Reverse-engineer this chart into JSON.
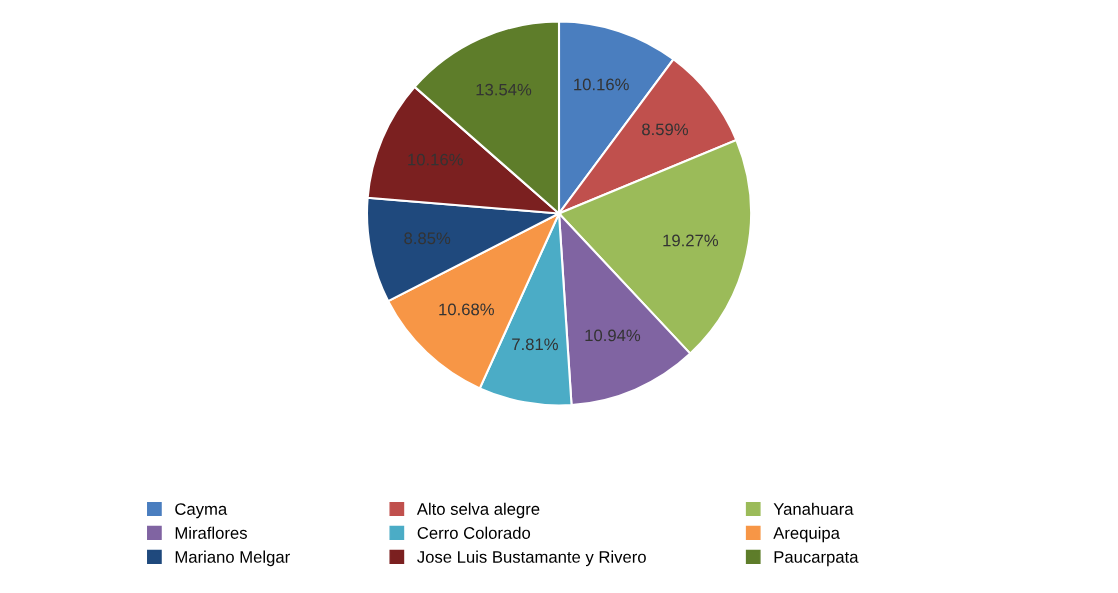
{
  "chart_data": {
    "type": "pie",
    "categories": [
      "Cayma",
      "Alto selva alegre",
      "Yanahuara",
      "Miraflores",
      "Cerro Colorado",
      "Arequipa",
      "Mariano Melgar",
      "Jose Luis Bustamante y Rivero",
      "Paucarpata"
    ],
    "values": [
      10.16,
      8.59,
      19.27,
      10.94,
      7.81,
      10.68,
      8.85,
      10.16,
      13.54
    ],
    "colors": [
      "#4a7ebf",
      "#c0504d",
      "#9bbb59",
      "#8064a2",
      "#4bacc6",
      "#f79646",
      "#1f497d",
      "#7b2020",
      "#5e7d2a"
    ],
    "value_labels": [
      "10.16%",
      "8.59%",
      "19.27%",
      "10.94%",
      "7.81%",
      "10.68%",
      "8.85%",
      "10.16%",
      "13.54%"
    ],
    "legend": "bottom"
  }
}
